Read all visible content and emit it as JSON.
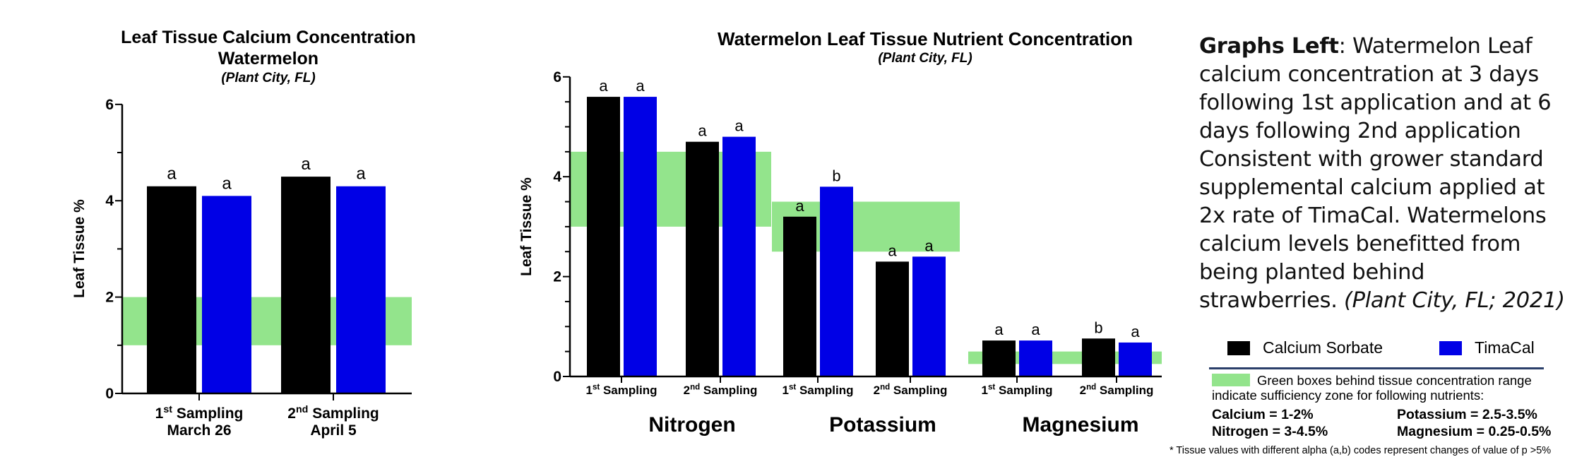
{
  "colors": {
    "calcium_sorbate": "#000000",
    "timacal": "#0000e6",
    "sufficiency_zone": "#93e48c",
    "divider": "#2b3f6a"
  },
  "left_chart": {
    "title_line1": "Leaf Tissue Calcium Concentration",
    "title_line2": "Watermelon",
    "subtitle": "(Plant City, FL)",
    "ylabel": "Leaf Tissue %",
    "yticks": [
      "0",
      "2",
      "4",
      "6"
    ],
    "groups": [
      {
        "ordinal": "1",
        "sup": "st",
        "label": "Sampling",
        "date": "March 26"
      },
      {
        "ordinal": "2",
        "sup": "nd",
        "label": "Sampling",
        "date": "April 5"
      }
    ]
  },
  "middle_chart": {
    "title": "Watermelon Leaf Tissue Nutrient Concentration",
    "subtitle": "(Plant City, FL)",
    "ylabel": "Leaf Tissue %",
    "yticks": [
      "0",
      "2",
      "4",
      "6"
    ],
    "sampling_labels": [
      {
        "ordinal": "1",
        "sup": "st",
        "label": "Sampling"
      },
      {
        "ordinal": "2",
        "sup": "nd",
        "label": "Sampling"
      },
      {
        "ordinal": "1",
        "sup": "st",
        "label": "Sampling"
      },
      {
        "ordinal": "2",
        "sup": "nd",
        "label": "Sampling"
      },
      {
        "ordinal": "1",
        "sup": "st",
        "label": "Sampling"
      },
      {
        "ordinal": "2",
        "sup": "nd",
        "label": "Sampling"
      }
    ],
    "nutrients": [
      "Nitrogen",
      "Potassium",
      "Magnesium"
    ]
  },
  "description": {
    "bold_lead": "Graphs Left",
    "lines": [
      ": Watermelon Leaf",
      "calcium concentration at 3 days",
      "following 1st application and at 6",
      "days following 2nd application",
      "Consistent with grower standard",
      "supplemental calcium applied at",
      "2x rate of TimaCal. Watermelons",
      "calcium levels benefitted from",
      "being planted behind",
      "strawberries. "
    ],
    "italic_tail": "(Plant City, FL; 2021)"
  },
  "legend": {
    "items": [
      {
        "label": "Calcium Sorbate",
        "color": "#000000"
      },
      {
        "label": "TimaCal",
        "color": "#0000e6"
      }
    ],
    "green_note_line1": "Green boxes behind tissue concentration range",
    "green_note_line2": "indicate sufficiency zone for following nutrients:",
    "ranges": {
      "calcium": "Calcium = 1-2%",
      "potassium": "Potassium = 2.5-3.5%",
      "nitrogen": "Nitrogen = 3-4.5%",
      "magnesium": "Magnesium = 0.25-0.5%"
    },
    "footnote": "* Tissue values with different alpha (a,b) codes represent changes of value of p >5%"
  },
  "chart_data": [
    {
      "type": "bar",
      "title": "Leaf Tissue Calcium Concentration Watermelon (Plant City, FL)",
      "xlabel": "",
      "ylabel": "Leaf Tissue %",
      "ylim": [
        0,
        6
      ],
      "yticks": [
        0,
        2,
        4,
        6
      ],
      "categories": [
        "1st Sampling March 26",
        "2nd Sampling April 5"
      ],
      "series": [
        {
          "name": "Calcium Sorbate",
          "color": "#000000",
          "values": [
            4.3,
            4.5
          ],
          "letters": [
            "a",
            "a"
          ]
        },
        {
          "name": "TimaCal",
          "color": "#0000e6",
          "values": [
            4.1,
            4.3
          ],
          "letters": [
            "a",
            "a"
          ]
        }
      ],
      "sufficiency_zone": {
        "nutrient": "Calcium",
        "range": [
          1,
          2
        ]
      },
      "grid": false,
      "legend_position": "external-right"
    },
    {
      "type": "bar",
      "title": "Watermelon Leaf Tissue Nutrient Concentration (Plant City, FL)",
      "xlabel": "",
      "ylabel": "Leaf Tissue %",
      "ylim": [
        0,
        6
      ],
      "yticks": [
        0,
        2,
        4,
        6
      ],
      "categories": [
        "Nitrogen 1st Sampling",
        "Nitrogen 2nd Sampling",
        "Potassium 1st Sampling",
        "Potassium 2nd Sampling",
        "Magnesium 1st Sampling",
        "Magnesium 2nd Sampling"
      ],
      "series": [
        {
          "name": "Calcium Sorbate",
          "color": "#000000",
          "values": [
            5.6,
            4.7,
            3.2,
            2.3,
            0.72,
            0.76
          ],
          "letters": [
            "a",
            "a",
            "a",
            "a",
            "a",
            "b"
          ]
        },
        {
          "name": "TimaCal",
          "color": "#0000e6",
          "values": [
            5.6,
            4.8,
            3.8,
            2.4,
            0.72,
            0.68
          ],
          "letters": [
            "a",
            "a",
            "b",
            "a",
            "a",
            "a"
          ]
        }
      ],
      "sufficiency_zones": [
        {
          "nutrient": "Nitrogen",
          "range": [
            3,
            4.5
          ]
        },
        {
          "nutrient": "Potassium",
          "range": [
            2.5,
            3.5
          ]
        },
        {
          "nutrient": "Magnesium",
          "range": [
            0.25,
            0.5
          ]
        }
      ],
      "grid": false,
      "legend_position": "external-right"
    }
  ]
}
